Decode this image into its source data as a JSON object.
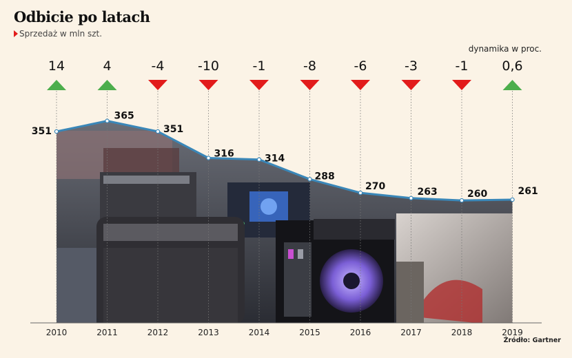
{
  "title": "Odbicie po latach",
  "subtitle": "Sprzedaż w mln szt.",
  "growth_label": "dynamika w proc.",
  "source": "Źródło: Gartner",
  "colors": {
    "line": "#3a87b8",
    "up": "#4cae4c",
    "down": "#e21b1b",
    "background": "#fbf3e6"
  },
  "chart_data": {
    "type": "line",
    "title": "Odbicie po latach",
    "subtitle": "Sprzedaż w mln szt.",
    "x": [
      "2010",
      "2011",
      "2012",
      "2013",
      "2014",
      "2015",
      "2016",
      "2017",
      "2018",
      "2019"
    ],
    "series": [
      {
        "values": [
          351,
          365,
          351,
          316,
          314,
          288,
          270,
          263,
          260,
          261
        ],
        "value_labels": [
          "351",
          "365",
          "351",
          "316",
          "314",
          "288",
          "270",
          "263",
          "260",
          "261"
        ]
      }
    ],
    "growth": {
      "label": "dynamika w proc.",
      "values": [
        14,
        4,
        -4,
        -10,
        -1,
        -8,
        -6,
        -3,
        -1,
        0.6
      ],
      "labels": [
        "14",
        "4",
        "-4",
        "-10",
        "-1",
        "-8",
        "-6",
        "-3",
        "-1",
        "0,6"
      ],
      "direction": [
        "up",
        "up",
        "down",
        "down",
        "down",
        "down",
        "down",
        "down",
        "down",
        "up"
      ]
    },
    "grid": false,
    "legend": "none"
  }
}
